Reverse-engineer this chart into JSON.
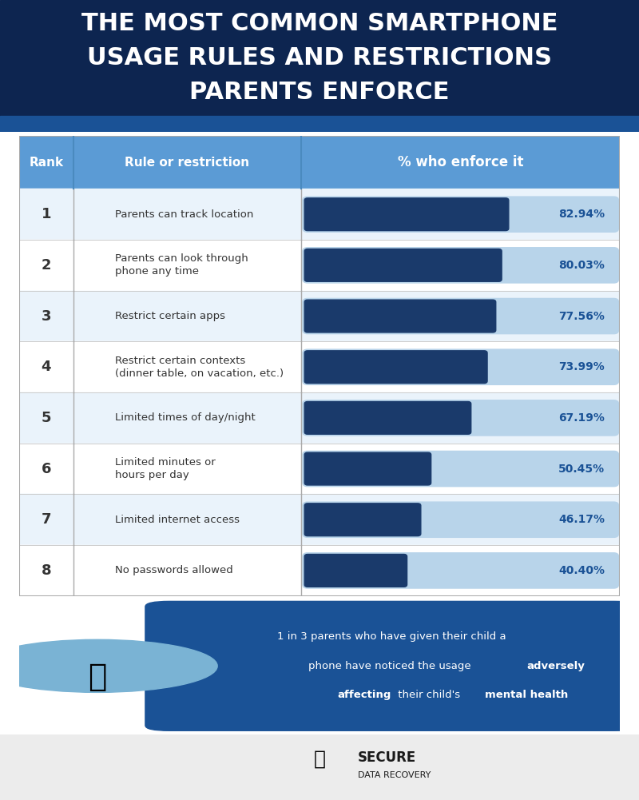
{
  "title_line1": "THE MOST COMMON SMARTPHONE",
  "title_line2": "USAGE RULES AND RESTRICTIONS",
  "title_line3": "PARENTS ENFORCE",
  "title_bg_color": "#0d2550",
  "title_text_color": "#ffffff",
  "header_bg_color": "#5b9bd5",
  "header_text_color": "#ffffff",
  "table_bg_color": "#ffffff",
  "row_alt_color": "#eaf3fb",
  "bar_color": "#1a3a6b",
  "bar_bg_color": "#b8d4ea",
  "rank_col_color": "#5b9bd5",
  "ranks": [
    1,
    2,
    3,
    4,
    5,
    6,
    7,
    8
  ],
  "labels": [
    "Parents can track location",
    "Parents can look through\nphone any time",
    "Restrict certain apps",
    "Restrict certain contexts\n(dinner table, on vacation, etc.)",
    "Limited times of day/night",
    "Limited minutes or\nhours per day",
    "Limited internet access",
    "No passwords allowed"
  ],
  "values": [
    82.94,
    80.03,
    77.56,
    73.99,
    67.19,
    50.45,
    46.17,
    40.4
  ],
  "value_labels": [
    "82.94%",
    "80.03%",
    "77.56%",
    "73.99%",
    "67.19%",
    "50.45%",
    "46.17%",
    "40.40%"
  ],
  "max_value": 100,
  "footer_bg_color": "#1a5296",
  "footer_text_color": "#ffffff",
  "footer_note": "1 in 3 parents who have given their child a\nphone have noticed the usage adversely\naffecting their child's mental health.",
  "bottom_bg_color": "#ececec",
  "stripe_color": "#1a5296"
}
